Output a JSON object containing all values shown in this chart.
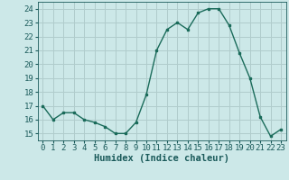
{
  "x": [
    0,
    1,
    2,
    3,
    4,
    5,
    6,
    7,
    8,
    9,
    10,
    11,
    12,
    13,
    14,
    15,
    16,
    17,
    18,
    19,
    20,
    21,
    22,
    23
  ],
  "y": [
    17,
    16,
    16.5,
    16.5,
    16,
    15.8,
    15.5,
    15,
    15,
    15.8,
    17.8,
    21,
    22.5,
    23,
    22.5,
    23.7,
    24,
    24,
    22.8,
    20.8,
    19,
    16.2,
    14.8,
    15.3
  ],
  "line_color": "#1a6b5a",
  "marker_color": "#1a6b5a",
  "bg_color": "#cce8e8",
  "grid_color": "#b0cccc",
  "xlabel": "Humidex (Indice chaleur)",
  "ylim": [
    14.5,
    24.5
  ],
  "xlim": [
    -0.5,
    23.5
  ],
  "yticks": [
    15,
    16,
    17,
    18,
    19,
    20,
    21,
    22,
    23,
    24
  ],
  "xticks": [
    0,
    1,
    2,
    3,
    4,
    5,
    6,
    7,
    8,
    9,
    10,
    11,
    12,
    13,
    14,
    15,
    16,
    17,
    18,
    19,
    20,
    21,
    22,
    23
  ],
  "font_color": "#1a5a5a",
  "xlabel_fontsize": 7.5,
  "tick_fontsize": 6.5
}
